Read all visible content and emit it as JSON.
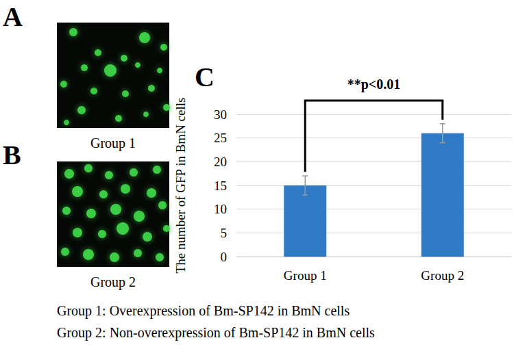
{
  "panels": [
    {
      "panel": "A",
      "caption": "Group 1"
    },
    {
      "panel": "B",
      "caption": "Group 2"
    }
  ],
  "chart_data": {
    "panel": "C",
    "type": "bar",
    "y_label": "The number of GFP in BmN cells",
    "categories": [
      "Group 1",
      "Group 2"
    ],
    "values": [
      15,
      26
    ],
    "errors": [
      2,
      2
    ],
    "color": "#2e7ac4",
    "ylim": [
      0,
      30
    ],
    "yticks": [
      0,
      5,
      10,
      15,
      20,
      25,
      30
    ],
    "grid": true,
    "annotation": "**p<0.01"
  },
  "footnotes": [
    "Group 1: Overexpression of Bm-SP142 in BmN cells",
    "Group 2: Non-overexpression of Bm-SP142 in BmN cells"
  ]
}
